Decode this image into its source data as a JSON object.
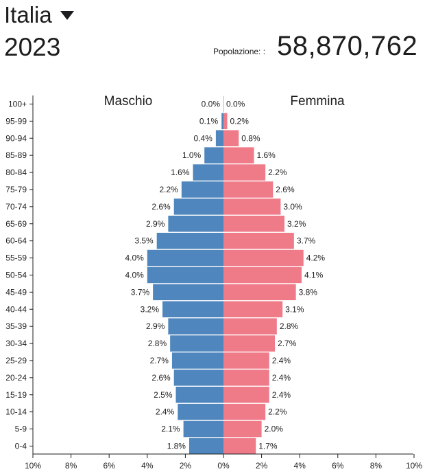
{
  "header": {
    "country": "Italia",
    "year": "2023",
    "population_label": "Popolazione: :",
    "population_value": "58,870,762"
  },
  "colors": {
    "male": "#4f86bd",
    "female": "#ef7b89",
    "axis": "#1d1d1f"
  },
  "chart_data": {
    "type": "bar",
    "orientation": "horizontal-population-pyramid",
    "categories": [
      "100+",
      "95-99",
      "90-94",
      "85-89",
      "80-84",
      "75-79",
      "70-74",
      "65-69",
      "60-64",
      "55-59",
      "50-54",
      "45-49",
      "40-44",
      "35-39",
      "30-34",
      "25-29",
      "20-24",
      "15-19",
      "10-14",
      "5-9",
      "0-4"
    ],
    "series": [
      {
        "name": "Maschio",
        "values": [
          0.0,
          0.1,
          0.4,
          1.0,
          1.6,
          2.2,
          2.6,
          2.9,
          3.5,
          4.0,
          4.0,
          3.7,
          3.2,
          2.9,
          2.8,
          2.7,
          2.6,
          2.5,
          2.4,
          2.1,
          1.8
        ]
      },
      {
        "name": "Femmina",
        "values": [
          0.0,
          0.2,
          0.8,
          1.6,
          2.2,
          2.6,
          3.0,
          3.2,
          3.7,
          4.2,
          4.1,
          3.8,
          3.1,
          2.8,
          2.7,
          2.4,
          2.4,
          2.4,
          2.2,
          2.0,
          1.7
        ]
      }
    ],
    "xticks": [
      "10%",
      "8%",
      "6%",
      "4%",
      "2%",
      "0%",
      "2%",
      "4%",
      "6%",
      "8%",
      "10%"
    ],
    "xlim": [
      -10,
      10
    ],
    "unit": "%"
  }
}
